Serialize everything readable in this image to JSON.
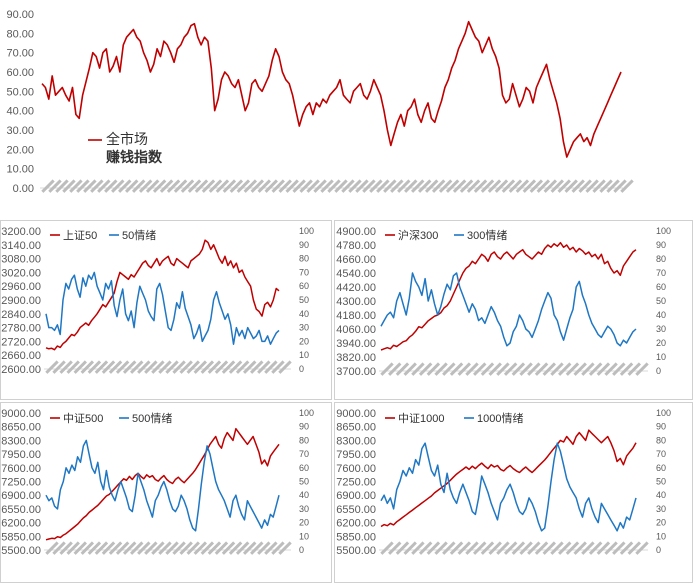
{
  "colors": {
    "red": "#c00000",
    "blue": "#1f77c4",
    "axis_text": "#595959",
    "grid": "#d9d9d9"
  },
  "chart_data": [
    {
      "id": "overall",
      "type": "line",
      "title": "",
      "legend": {
        "name": "全市场",
        "name2": "赚钱指数"
      },
      "ylim": [
        0,
        90
      ],
      "yticks": [
        "0.00",
        "10.00",
        "20.00",
        "30.00",
        "40.00",
        "50.00",
        "60.00",
        "70.00",
        "80.00",
        "90.00"
      ],
      "xlabels_note": "dense rotated date labels (illegible)",
      "series": [
        {
          "name": "全市场 赚钱指数",
          "color": "#c00000",
          "values": [
            54,
            52,
            46,
            58,
            48,
            50,
            52,
            48,
            45,
            52,
            38,
            36,
            48,
            55,
            62,
            70,
            68,
            62,
            70,
            72,
            60,
            63,
            68,
            60,
            74,
            78,
            80,
            82,
            78,
            76,
            70,
            66,
            60,
            64,
            72,
            68,
            76,
            74,
            70,
            65,
            72,
            74,
            78,
            80,
            84,
            85,
            78,
            74,
            78,
            76,
            62,
            40,
            46,
            56,
            60,
            58,
            54,
            52,
            56,
            48,
            40,
            44,
            54,
            56,
            52,
            50,
            54,
            58,
            66,
            72,
            68,
            60,
            56,
            54,
            48,
            40,
            32,
            38,
            42,
            44,
            38,
            44,
            42,
            46,
            44,
            48,
            50,
            52,
            56,
            48,
            46,
            44,
            50,
            52,
            54,
            48,
            46,
            50,
            56,
            52,
            48,
            40,
            30,
            22,
            28,
            34,
            38,
            32,
            40,
            42,
            46,
            38,
            34,
            40,
            44,
            36,
            34,
            40,
            45,
            52,
            56,
            62,
            66,
            72,
            76,
            80,
            86,
            82,
            78,
            76,
            70,
            74,
            78,
            72,
            68,
            62,
            48,
            44,
            46,
            54,
            48,
            42,
            46,
            52,
            50,
            44,
            52,
            56,
            60,
            64,
            56,
            50,
            44,
            36,
            24,
            16,
            20,
            24,
            26,
            28,
            24,
            26,
            22,
            28,
            32,
            36,
            40,
            44,
            48,
            52,
            56,
            60
          ]
        }
      ]
    },
    {
      "id": "sz50",
      "type": "line",
      "legend": [
        {
          "name": "上证50",
          "color": "#c00000"
        },
        {
          "name": "50情绪",
          "color": "#1f77c4"
        }
      ],
      "left_ylim": [
        2600,
        3200
      ],
      "left_yticks": [
        "2600.00",
        "2660.00",
        "2720.00",
        "2780.00",
        "2840.00",
        "2900.00",
        "2960.00",
        "3020.00",
        "3080.00",
        "3140.00",
        "3200.00"
      ],
      "right_ylim": [
        0,
        100
      ],
      "right_yticks": [
        "0",
        "10",
        "20",
        "30",
        "40",
        "50",
        "60",
        "70",
        "80",
        "90",
        "100"
      ],
      "series": [
        {
          "name": "上证50",
          "axis": "left",
          "color": "#c00000",
          "values": [
            2692,
            2688,
            2690,
            2684,
            2700,
            2694,
            2710,
            2720,
            2735,
            2750,
            2745,
            2760,
            2780,
            2790,
            2800,
            2790,
            2810,
            2825,
            2840,
            2860,
            2880,
            2870,
            2890,
            2910,
            2930,
            2980,
            3020,
            3010,
            3000,
            2990,
            3010,
            3000,
            3020,
            3040,
            3060,
            3070,
            3050,
            3040,
            3060,
            3080,
            3050,
            3070,
            3080,
            3090,
            3060,
            3050,
            3080,
            3070,
            3060,
            3050,
            3040,
            3070,
            3080,
            3090,
            3100,
            3120,
            3160,
            3150,
            3120,
            3140,
            3110,
            3080,
            3060,
            3090,
            3050,
            3070,
            3040,
            3060,
            3020,
            3030,
            3000,
            2980,
            2960,
            2900,
            2860,
            2850,
            2830,
            2880,
            2890,
            2870,
            2900,
            2950,
            2940
          ]
        },
        {
          "name": "50情绪",
          "axis": "right",
          "color": "#1f77c4",
          "values": [
            40,
            30,
            30,
            28,
            32,
            25,
            50,
            62,
            58,
            65,
            68,
            58,
            52,
            66,
            60,
            68,
            65,
            70,
            60,
            55,
            50,
            62,
            58,
            64,
            46,
            38,
            50,
            58,
            40,
            35,
            42,
            30,
            48,
            60,
            55,
            50,
            42,
            38,
            35,
            58,
            62,
            54,
            42,
            30,
            28,
            36,
            48,
            44,
            56,
            44,
            38,
            32,
            22,
            26,
            32,
            20,
            24,
            28,
            36,
            50,
            56,
            48,
            42,
            36,
            40,
            32,
            18,
            30,
            24,
            28,
            22,
            30,
            26,
            22,
            24,
            28,
            20,
            20,
            24,
            18,
            22,
            26,
            28
          ]
        }
      ]
    },
    {
      "id": "hs300",
      "type": "line",
      "legend": [
        {
          "name": "沪深300",
          "color": "#c00000"
        },
        {
          "name": "300情绪",
          "color": "#1f77c4"
        }
      ],
      "left_ylim": [
        3700,
        4900
      ],
      "left_yticks": [
        "3700.00",
        "3820.00",
        "3940.00",
        "4060.00",
        "4180.00",
        "4300.00",
        "4420.00",
        "4540.00",
        "4660.00",
        "4780.00",
        "4900.00"
      ],
      "right_ylim": [
        0,
        100
      ],
      "right_yticks": [
        "0",
        "10",
        "20",
        "30",
        "40",
        "50",
        "60",
        "70",
        "80",
        "90",
        "100"
      ],
      "series": [
        {
          "name": "沪深300",
          "axis": "left",
          "color": "#c00000",
          "values": [
            3880,
            3890,
            3900,
            3890,
            3920,
            3910,
            3930,
            3950,
            3960,
            3990,
            4010,
            4040,
            4080,
            4070,
            4100,
            4130,
            4150,
            4170,
            4180,
            4200,
            4240,
            4260,
            4300,
            4360,
            4420,
            4480,
            4540,
            4580,
            4600,
            4640,
            4620,
            4660,
            4700,
            4680,
            4640,
            4700,
            4720,
            4680,
            4660,
            4700,
            4720,
            4690,
            4660,
            4700,
            4720,
            4740,
            4700,
            4680,
            4660,
            4690,
            4720,
            4700,
            4750,
            4780,
            4760,
            4790,
            4770,
            4800,
            4760,
            4780,
            4740,
            4760,
            4720,
            4750,
            4730,
            4700,
            4720,
            4680,
            4700,
            4660,
            4700,
            4620,
            4640,
            4580,
            4540,
            4560,
            4520,
            4600,
            4640,
            4680,
            4720,
            4740
          ]
        },
        {
          "name": "300情绪",
          "axis": "right",
          "color": "#1f77c4",
          "values": [
            32,
            36,
            40,
            42,
            38,
            50,
            56,
            48,
            40,
            52,
            70,
            64,
            60,
            54,
            66,
            50,
            58,
            48,
            40,
            46,
            55,
            62,
            58,
            68,
            70,
            60,
            54,
            48,
            42,
            48,
            44,
            36,
            38,
            34,
            40,
            46,
            42,
            36,
            32,
            24,
            18,
            20,
            28,
            32,
            40,
            36,
            30,
            28,
            24,
            30,
            36,
            44,
            50,
            56,
            52,
            40,
            36,
            28,
            22,
            30,
            38,
            44,
            60,
            64,
            54,
            48,
            40,
            34,
            30,
            26,
            24,
            28,
            32,
            30,
            26,
            20,
            18,
            22,
            20,
            24,
            28,
            30
          ]
        }
      ]
    },
    {
      "id": "zz500",
      "type": "line",
      "legend": [
        {
          "name": "中证500",
          "color": "#c00000"
        },
        {
          "name": "500情绪",
          "color": "#1f77c4"
        }
      ],
      "left_ylim": [
        5500,
        9000
      ],
      "left_yticks": [
        "5500.00",
        "5850.00",
        "6200.00",
        "6550.00",
        "6900.00",
        "7250.00",
        "7600.00",
        "7950.00",
        "8300.00",
        "8650.00",
        "9000.00"
      ],
      "right_ylim": [
        0,
        100
      ],
      "right_yticks": [
        "0",
        "10",
        "20",
        "30",
        "40",
        "50",
        "60",
        "70",
        "80",
        "90",
        "100"
      ],
      "series": [
        {
          "name": "中证500",
          "axis": "left",
          "color": "#c00000",
          "values": [
            5760,
            5780,
            5800,
            5790,
            5840,
            5820,
            5880,
            5920,
            5980,
            6040,
            6100,
            6160,
            6240,
            6320,
            6380,
            6460,
            6520,
            6580,
            6640,
            6720,
            6800,
            6880,
            6920,
            7000,
            7080,
            7160,
            7240,
            7320,
            7280,
            7380,
            7300,
            7400,
            7460,
            7380,
            7320,
            7420,
            7360,
            7400,
            7300,
            7260,
            7340,
            7400,
            7300,
            7240,
            7200,
            7300,
            7360,
            7280,
            7220,
            7300,
            7380,
            7460,
            7560,
            7680,
            7800,
            7920,
            8060,
            8200,
            8300,
            8400,
            8200,
            8100,
            8350,
            8500,
            8400,
            8300,
            8600,
            8500,
            8400,
            8300,
            8200,
            8300,
            8400,
            8200,
            8000,
            7700,
            7800,
            7650,
            7900,
            8000,
            8100,
            8200
          ]
        },
        {
          "name": "500情绪",
          "axis": "right",
          "color": "#1f77c4",
          "values": [
            40,
            36,
            38,
            32,
            30,
            44,
            50,
            60,
            56,
            62,
            58,
            68,
            64,
            76,
            80,
            70,
            60,
            56,
            64,
            50,
            44,
            58,
            46,
            40,
            36,
            44,
            50,
            44,
            38,
            30,
            28,
            40,
            56,
            50,
            44,
            36,
            30,
            24,
            36,
            40,
            46,
            50,
            44,
            36,
            30,
            28,
            32,
            40,
            36,
            30,
            22,
            16,
            14,
            30,
            48,
            64,
            76,
            70,
            60,
            50,
            44,
            40,
            36,
            30,
            24,
            36,
            40,
            32,
            26,
            22,
            36,
            32,
            28,
            24,
            20,
            16,
            22,
            18,
            26,
            24,
            32,
            40
          ]
        }
      ]
    },
    {
      "id": "zz1000",
      "type": "line",
      "legend": [
        {
          "name": "中证1000",
          "color": "#c00000"
        },
        {
          "name": "1000情绪",
          "color": "#1f77c4"
        }
      ],
      "left_ylim": [
        5500,
        9000
      ],
      "left_yticks": [
        "5500.00",
        "5850.00",
        "6200.00",
        "6550.00",
        "6900.00",
        "7250.00",
        "7600.00",
        "7950.00",
        "8300.00",
        "8650.00",
        "9000.00"
      ],
      "right_ylim": [
        0,
        100
      ],
      "right_yticks": [
        "0",
        "10",
        "20",
        "30",
        "40",
        "50",
        "60",
        "70",
        "80",
        "90",
        "100"
      ],
      "series": [
        {
          "name": "中证1000",
          "axis": "left",
          "color": "#c00000",
          "values": [
            6100,
            6150,
            6120,
            6180,
            6140,
            6220,
            6280,
            6340,
            6400,
            6460,
            6520,
            6580,
            6640,
            6700,
            6760,
            6820,
            6880,
            6960,
            7020,
            7080,
            7140,
            7200,
            7280,
            7360,
            7440,
            7500,
            7560,
            7620,
            7560,
            7640,
            7580,
            7660,
            7720,
            7640,
            7580,
            7680,
            7620,
            7660,
            7560,
            7520,
            7600,
            7660,
            7580,
            7520,
            7480,
            7560,
            7620,
            7540,
            7480,
            7560,
            7640,
            7720,
            7800,
            7900,
            8000,
            8100,
            8200,
            8300,
            8260,
            8400,
            8300,
            8200,
            8400,
            8500,
            8400,
            8300,
            8560,
            8480,
            8400,
            8320,
            8240,
            8320,
            8400,
            8240,
            8040,
            7760,
            7840,
            7680,
            7900,
            8000,
            8100,
            8240
          ]
        },
        {
          "name": "1000情绪",
          "axis": "right",
          "color": "#1f77c4",
          "values": [
            36,
            40,
            34,
            38,
            30,
            44,
            50,
            58,
            54,
            60,
            56,
            66,
            62,
            74,
            78,
            68,
            58,
            54,
            62,
            48,
            42,
            56,
            44,
            38,
            34,
            42,
            48,
            42,
            36,
            28,
            26,
            38,
            54,
            48,
            42,
            34,
            28,
            22,
            34,
            38,
            44,
            48,
            42,
            34,
            28,
            26,
            30,
            38,
            34,
            28,
            20,
            14,
            16,
            32,
            50,
            66,
            78,
            72,
            62,
            52,
            46,
            42,
            38,
            30,
            24,
            34,
            38,
            30,
            24,
            20,
            34,
            30,
            26,
            22,
            18,
            14,
            20,
            16,
            24,
            22,
            30,
            38
          ]
        }
      ]
    }
  ]
}
